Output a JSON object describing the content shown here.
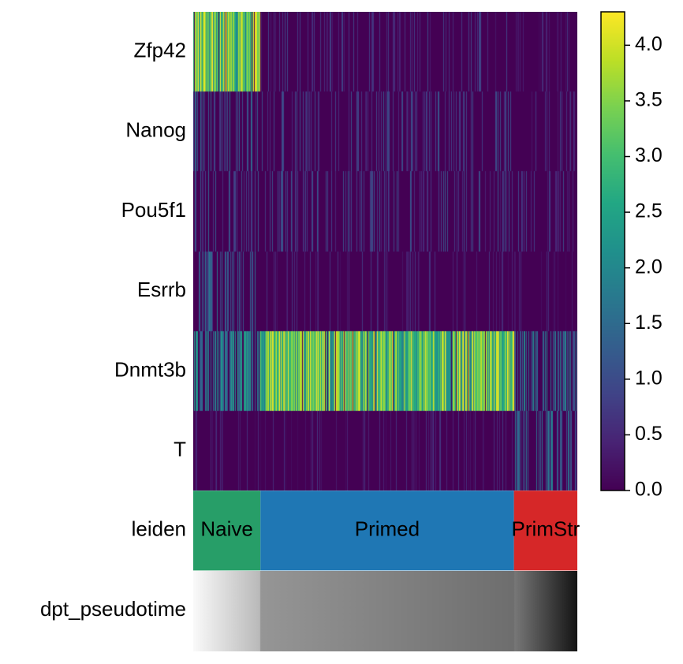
{
  "chart_data": {
    "type": "heatmap",
    "rows": [
      "Zfp42",
      "Nanog",
      "Pou5f1",
      "Esrrb",
      "Dnmt3b",
      "T"
    ],
    "annotation_rows": [
      "leiden",
      "dpt_pseudotime"
    ],
    "clusters": [
      {
        "name": "Naive",
        "fraction": 0.175,
        "color": "#279e68"
      },
      {
        "name": "Primed",
        "fraction": 0.66,
        "color": "#1f77b4"
      },
      {
        "name": "PrimStr",
        "fraction": 0.165,
        "color": "#d62728"
      }
    ],
    "gene_mean_expression": {
      "Zfp42": [
        3.0,
        0.3,
        0.1
      ],
      "Nanog": [
        0.8,
        0.5,
        0.3
      ],
      "Pou5f1": [
        0.6,
        0.5,
        0.3
      ],
      "Esrrb": [
        0.8,
        0.1,
        0.05
      ],
      "Dnmt3b": [
        1.5,
        2.8,
        1.2
      ],
      "T": [
        0.1,
        0.1,
        1.0
      ]
    },
    "pseudotime_range": [
      0,
      1
    ],
    "colorbar": {
      "colormap": "viridis",
      "range": [
        0.0,
        4.3
      ],
      "ticks": [
        "0.0",
        "0.5",
        "1.0",
        "1.5",
        "2.0",
        "2.5",
        "3.0",
        "3.5",
        "4.0"
      ]
    }
  }
}
